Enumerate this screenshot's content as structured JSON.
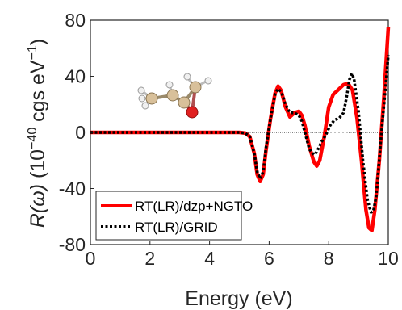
{
  "chart_data": {
    "type": "line",
    "xlabel": "Energy (eV)",
    "ylabel": {
      "symbol": "R(ω)",
      "prefix": " (10",
      "exp1": "−40",
      "mid": " cgs eV",
      "exp2": "−1",
      "suffix": ")"
    },
    "xlim": [
      0,
      10
    ],
    "ylim": [
      -80,
      80
    ],
    "xticks": [
      0,
      2,
      4,
      6,
      8,
      10
    ],
    "yticks": [
      -80,
      -40,
      0,
      40,
      80
    ],
    "zero_line": true,
    "legend_position": "bottom-left",
    "series": [
      {
        "name": "RT(LR)/dzp+NGTO",
        "color": "#ff0000",
        "style": "solid",
        "points": [
          [
            0,
            0
          ],
          [
            5.0,
            0
          ],
          [
            5.2,
            -0.5
          ],
          [
            5.35,
            -3
          ],
          [
            5.5,
            -15
          ],
          [
            5.6,
            -30
          ],
          [
            5.7,
            -35
          ],
          [
            5.8,
            -30
          ],
          [
            5.9,
            -12
          ],
          [
            6.05,
            10
          ],
          [
            6.2,
            28
          ],
          [
            6.3,
            33
          ],
          [
            6.4,
            30
          ],
          [
            6.55,
            18
          ],
          [
            6.7,
            11
          ],
          [
            6.85,
            14
          ],
          [
            7.0,
            15
          ],
          [
            7.1,
            12
          ],
          [
            7.2,
            5
          ],
          [
            7.35,
            -10
          ],
          [
            7.5,
            -21
          ],
          [
            7.6,
            -24
          ],
          [
            7.7,
            -20
          ],
          [
            7.85,
            -3
          ],
          [
            8.0,
            18
          ],
          [
            8.15,
            27
          ],
          [
            8.3,
            30
          ],
          [
            8.5,
            34
          ],
          [
            8.65,
            35
          ],
          [
            8.8,
            30
          ],
          [
            8.95,
            10
          ],
          [
            9.1,
            -20
          ],
          [
            9.25,
            -55
          ],
          [
            9.35,
            -68
          ],
          [
            9.45,
            -70
          ],
          [
            9.55,
            -55
          ],
          [
            9.7,
            -20
          ],
          [
            9.85,
            25
          ],
          [
            10.0,
            75
          ]
        ]
      },
      {
        "name": "RT(LR)/GRID",
        "color": "#000000",
        "style": "dotted",
        "points": [
          [
            0,
            0
          ],
          [
            5.0,
            0
          ],
          [
            5.2,
            -0.5
          ],
          [
            5.35,
            -3
          ],
          [
            5.5,
            -15
          ],
          [
            5.6,
            -28
          ],
          [
            5.7,
            -33
          ],
          [
            5.8,
            -28
          ],
          [
            5.9,
            -10
          ],
          [
            6.05,
            10
          ],
          [
            6.2,
            27
          ],
          [
            6.3,
            31
          ],
          [
            6.4,
            29
          ],
          [
            6.55,
            20
          ],
          [
            6.7,
            14
          ],
          [
            6.85,
            14
          ],
          [
            7.0,
            12
          ],
          [
            7.1,
            8
          ],
          [
            7.2,
            0
          ],
          [
            7.35,
            -12
          ],
          [
            7.5,
            -16
          ],
          [
            7.6,
            -14
          ],
          [
            7.75,
            -7
          ],
          [
            7.9,
            -2
          ],
          [
            8.05,
            5
          ],
          [
            8.2,
            9
          ],
          [
            8.35,
            10
          ],
          [
            8.5,
            14
          ],
          [
            8.6,
            25
          ],
          [
            8.7,
            38
          ],
          [
            8.78,
            42
          ],
          [
            8.85,
            38
          ],
          [
            9.0,
            15
          ],
          [
            9.15,
            -20
          ],
          [
            9.3,
            -48
          ],
          [
            9.42,
            -57
          ],
          [
            9.5,
            -56
          ],
          [
            9.6,
            -45
          ],
          [
            9.75,
            -5
          ],
          [
            9.9,
            30
          ],
          [
            10.0,
            55
          ]
        ]
      }
    ]
  }
}
